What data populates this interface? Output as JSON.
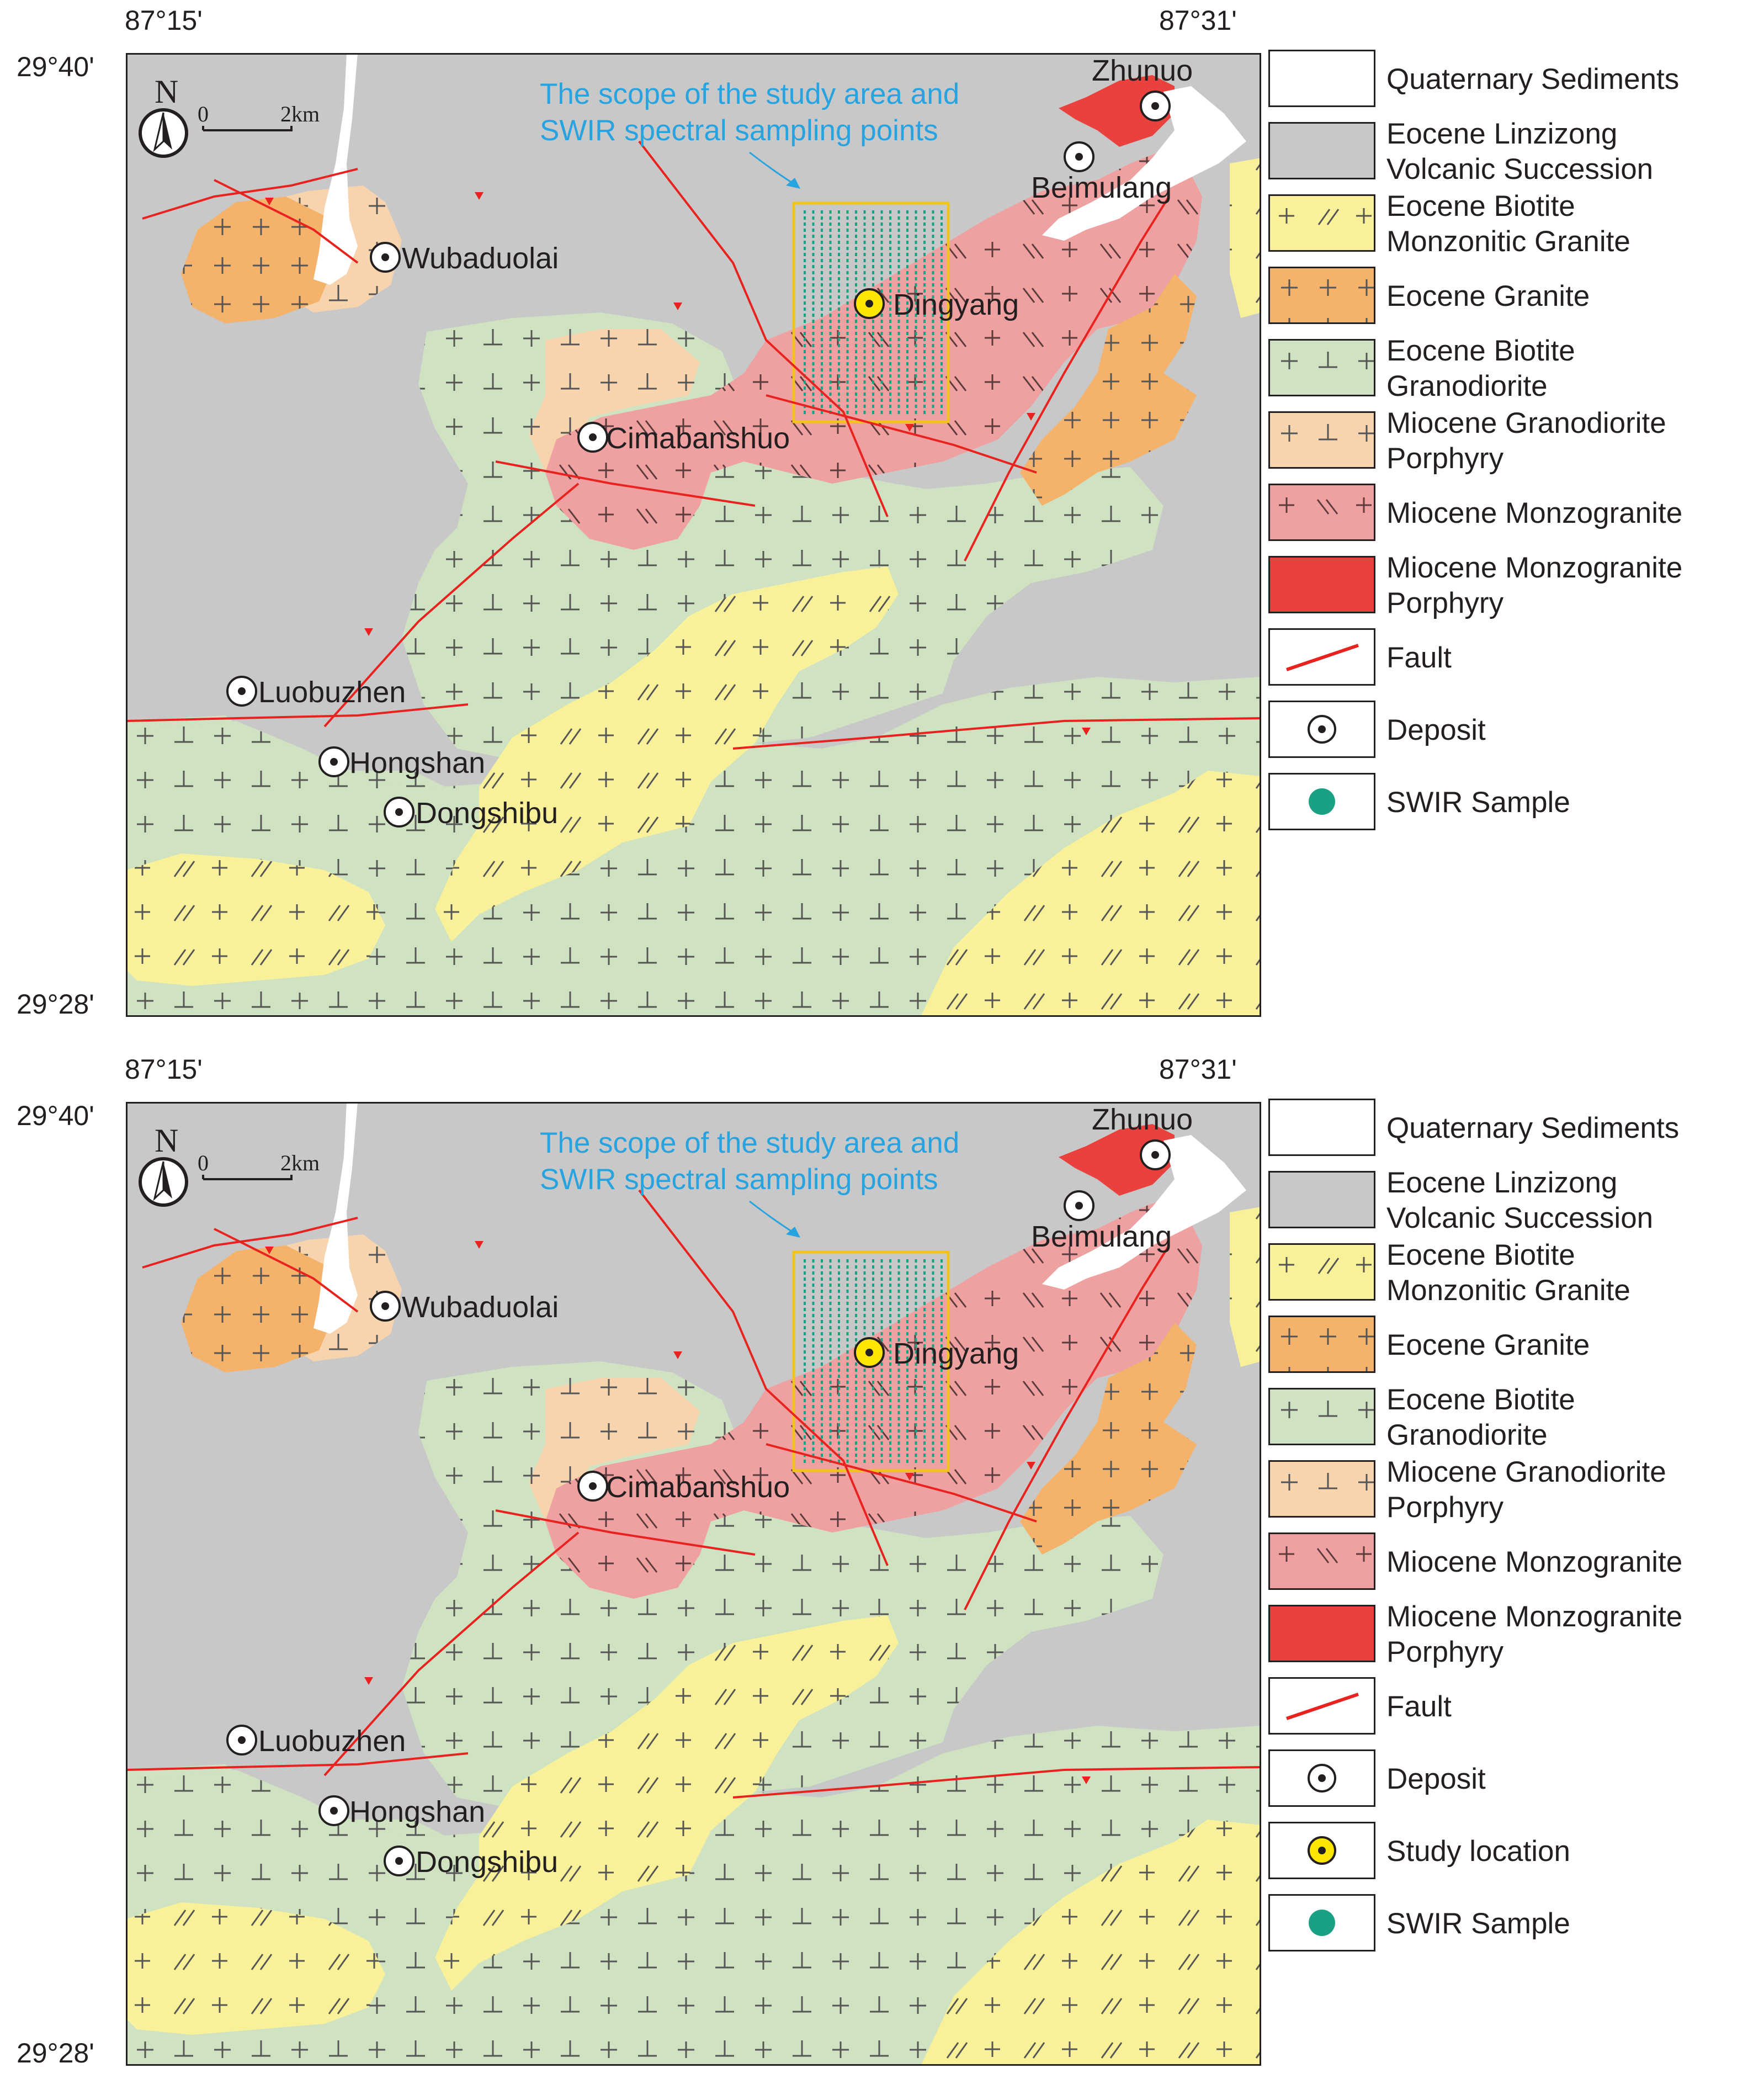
{
  "panels": [
    {
      "coords": {
        "lon_left": "87°15'",
        "lon_right": "87°31'",
        "lat_top": "29°40'",
        "lat_bottom": "29°28'"
      },
      "study_note": [
        "The scope of the study area and",
        "SWIR spectral sampling points"
      ],
      "scale": {
        "zero": "0",
        "dist": "2km"
      },
      "north": "N",
      "deposits": [
        "Zhunuo",
        "Beimulang",
        "Wubaduolai",
        "Dingyang",
        "Cimabanshuo",
        "Luobuzhen",
        "Hongshan",
        "Dongshibu"
      ],
      "legend": [
        {
          "key": "quaternary",
          "label": "Quaternary Sediments"
        },
        {
          "key": "linzizong",
          "label": "Eocene Linzizong\nVolcanic Succession"
        },
        {
          "key": "biotite_monz",
          "label": "Eocene Biotite\nMonzonitic Granite"
        },
        {
          "key": "eocene_granite",
          "label": "Eocene Granite"
        },
        {
          "key": "biotite_grano",
          "label": "Eocene Biotite\nGranodiorite"
        },
        {
          "key": "miocene_grano",
          "label": "Miocene Granodiorite\nPorphyry"
        },
        {
          "key": "miocene_monzo",
          "label": "Miocene Monzogranite"
        },
        {
          "key": "miocene_monzo_por",
          "label": "Miocene Monzogranite\nPorphyry"
        },
        {
          "key": "fault",
          "label": "Fault"
        },
        {
          "key": "deposit",
          "label": "Deposit"
        },
        {
          "key": "swir",
          "label": "SWIR Sample"
        }
      ]
    },
    {
      "coords": {
        "lon_left": "87°15'",
        "lon_right": "87°31'",
        "lat_top": "29°40'",
        "lat_bottom": "29°28'"
      },
      "study_note": [
        "The scope of the study area and",
        "SWIR spectral sampling points"
      ],
      "scale": {
        "zero": "0",
        "dist": "2km"
      },
      "north": "N",
      "deposits": [
        "Zhunuo",
        "Beimulang",
        "Wubaduolai",
        "Dingyang",
        "Cimabanshuo",
        "Luobuzhen",
        "Hongshan",
        "Dongshibu"
      ],
      "legend": [
        {
          "key": "quaternary",
          "label": "Quaternary Sediments"
        },
        {
          "key": "linzizong",
          "label": "Eocene Linzizong\nVolcanic Succession"
        },
        {
          "key": "biotite_monz",
          "label": "Eocene Biotite\nMonzonitic Granite"
        },
        {
          "key": "eocene_granite",
          "label": "Eocene Granite"
        },
        {
          "key": "biotite_grano",
          "label": "Eocene Biotite\nGranodiorite"
        },
        {
          "key": "miocene_grano",
          "label": "Miocene Granodiorite\nPorphyry"
        },
        {
          "key": "miocene_monzo",
          "label": "Miocene Monzogranite"
        },
        {
          "key": "miocene_monzo_por",
          "label": "Miocene Monzogranite\nPorphyry"
        },
        {
          "key": "fault",
          "label": "Fault"
        },
        {
          "key": "deposit",
          "label": "Deposit"
        },
        {
          "key": "study",
          "label": "Study location"
        },
        {
          "key": "swir",
          "label": "SWIR Sample"
        }
      ]
    }
  ],
  "colors": {
    "linzizong": "#c8c8c9",
    "quaternary": "#ffffff",
    "biotite_grano": "#cfe2c1",
    "biotite_monz": "#f8f19a",
    "eocene_granite": "#f4b26a",
    "miocene_grano": "#f8d4ae",
    "miocene_monzo": "#efa0a0",
    "miocene_monzo_por": "#e8413e",
    "fault": "#e8231f",
    "study_box": "#f2c318",
    "swir": "#1aa184",
    "study_text": "#27a3e0",
    "deposit_dot": "#231f20",
    "study_dot": "#ffe600"
  }
}
